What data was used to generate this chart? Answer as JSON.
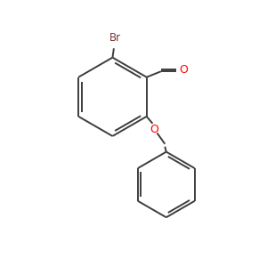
{
  "background_color": "#ffffff",
  "bond_color": "#3d3d3d",
  "bond_width": 1.4,
  "atom_colors": {
    "Br": "#7b3535",
    "O": "#ff0000",
    "C": "#3d3d3d"
  },
  "figsize": [
    3.0,
    3.0
  ],
  "dpi": 100,
  "xlim": [
    0,
    10
  ],
  "ylim": [
    0,
    10
  ]
}
